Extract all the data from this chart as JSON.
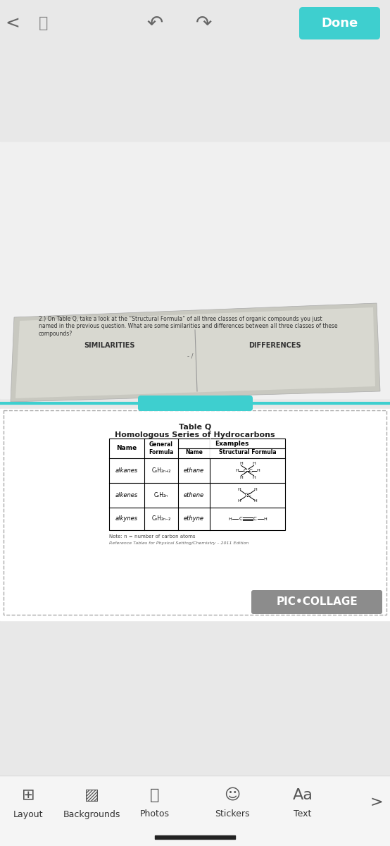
{
  "bg_color": "#e8e8e8",
  "done_btn_color": "#3ecfcf",
  "done_btn_text": "Done",
  "top_bar_color": "#e8e8e8",
  "panel1_bg": "#c8c8c0",
  "panel1_question": "2.) On Table Q, take a look at the “Structural Formula” of all three classes of organic compounds you just\nnamed in the previous question. What are some similarities and differences between all three classes of these\ncompounds?",
  "panel1_similarities": "SIMILARITIES",
  "panel1_differences": "DIFFERENCES",
  "panel2_bg": "#ffffff",
  "separator_color": "#3ecfcf",
  "table_title": "Table Q\nHomologous Series of Hydrocarbons",
  "table_headers": [
    "Name",
    "General\nFormula",
    "Name",
    "Structural Formula"
  ],
  "table_rows": [
    [
      "alkanes",
      "CₙH₂ₙ₊₂",
      "ethane",
      "ethane_struct"
    ],
    [
      "alkenes",
      "CₙH₂ₙ",
      "ethene",
      "ethene_struct"
    ],
    [
      "alkynes",
      "CₙH₂ₙ₋₂",
      "ethyne",
      "ethyne_struct"
    ]
  ],
  "note_text": "Note: n = number of carbon atoms",
  "reference_text": "Reference Tables for Physical Setting/Chemistry – 2011 Edition",
  "pic_collage_text": "PIC•COLLAGE",
  "toolbar_items": [
    "Layout",
    "Backgrounds",
    "Photos",
    "Stickers",
    "Text"
  ],
  "toolbar_bg": "#ffffff",
  "teal_color": "#3ecfcf",
  "dashed_border_color": "#aaaaaa"
}
